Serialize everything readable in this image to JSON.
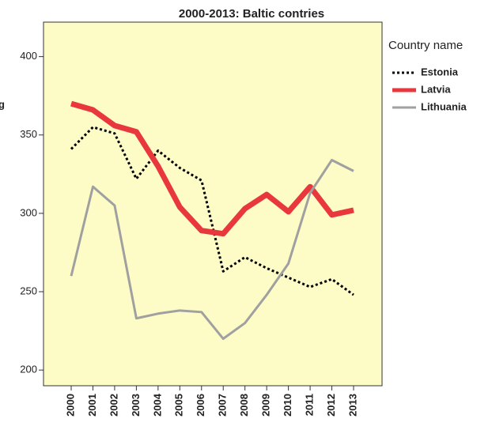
{
  "chart_data": {
    "type": "line",
    "title": "2000-2013: Baltic contries",
    "ylabel": "g",
    "legend_title": "Country name",
    "legend": "right",
    "categories": [
      "2000",
      "2001",
      "2002",
      "2003",
      "2004",
      "2005",
      "2006",
      "2007",
      "2008",
      "2009",
      "2010",
      "2011",
      "2012",
      "2013"
    ],
    "series": [
      {
        "name": "Estonia",
        "color": "#000000",
        "dash": "dotted",
        "width": 3,
        "values": [
          341,
          355,
          351,
          322,
          340,
          329,
          321,
          263,
          272,
          265,
          259,
          253,
          258,
          248
        ]
      },
      {
        "name": "Latvia",
        "color": "#e8383e",
        "dash": "solid",
        "width": 7,
        "values": [
          370,
          366,
          356,
          352,
          330,
          304,
          289,
          287,
          303,
          312,
          301,
          317,
          299,
          302
        ]
      },
      {
        "name": "Lithuania",
        "color": "#a0a0a0",
        "dash": "solid",
        "width": 3,
        "values": [
          260,
          317,
          305,
          233,
          236,
          238,
          237,
          220,
          230,
          248,
          268,
          313,
          334,
          327
        ]
      }
    ],
    "ylim": [
      190,
      422
    ],
    "yticks": [
      200,
      250,
      300,
      350,
      400
    ],
    "background": "#fdfbc6"
  }
}
